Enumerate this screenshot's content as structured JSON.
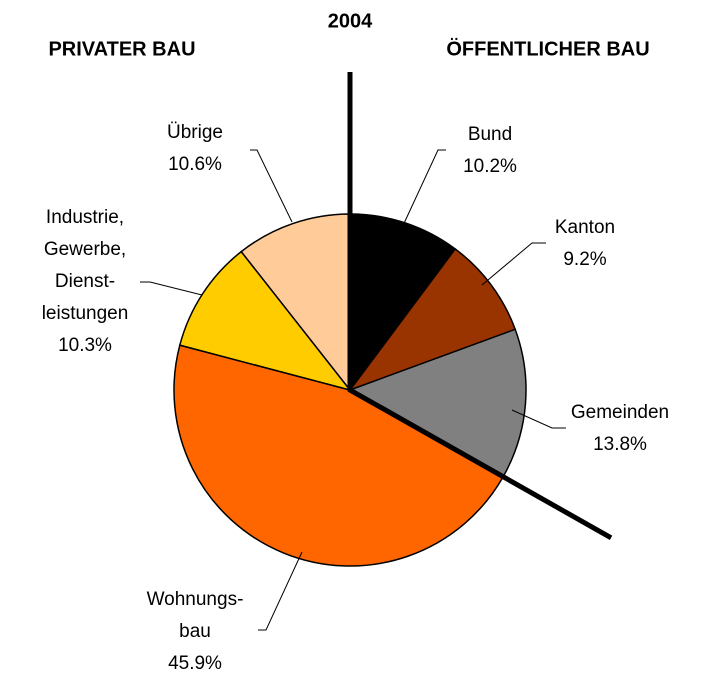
{
  "chart_data": {
    "type": "pie",
    "title": "2004",
    "annotations": [
      "PRIVATER BAU",
      "ÖFFENTLICHER BAU"
    ],
    "categories": [
      [
        "Bund"
      ],
      [
        "Kanton"
      ],
      [
        "Gemeinden"
      ],
      [
        "Wohnungs-",
        "bau"
      ],
      [
        "Industrie,",
        "Gewerbe,",
        "Dienst-",
        "leistungen"
      ],
      [
        "Übrige"
      ]
    ],
    "values": [
      10.2,
      9.2,
      13.8,
      45.9,
      10.3,
      10.6
    ],
    "value_labels": [
      "10.2%",
      "9.2%",
      "13.8%",
      "45.9%",
      "10.3%",
      "10.6%"
    ],
    "colors": [
      "#000000",
      "#993300",
      "#808080",
      "#ff6600",
      "#ffcc00",
      "#ffcc99"
    ]
  }
}
